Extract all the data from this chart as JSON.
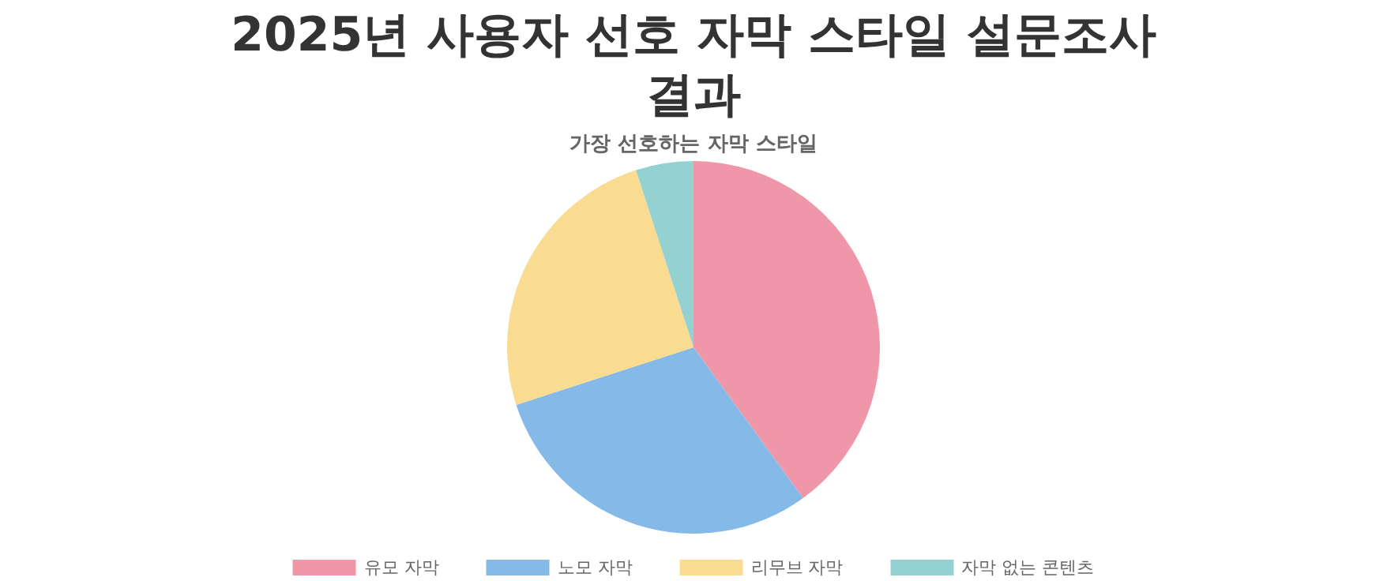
{
  "chart_data": {
    "type": "pie",
    "title": "2025년 사용자 선호 자막 스타일 설문조사 결과",
    "subtitle": "가장 선호하는 자막 스타일",
    "categories": [
      "유모 자막",
      "노모 자막",
      "리무브 자막",
      "자막 없는 콘텐츠"
    ],
    "values": [
      40,
      30,
      25,
      5
    ],
    "colors": [
      "#ef97a8",
      "#84b9e8",
      "#f9dc92",
      "#94d2d2"
    ],
    "legend": "bottom"
  }
}
